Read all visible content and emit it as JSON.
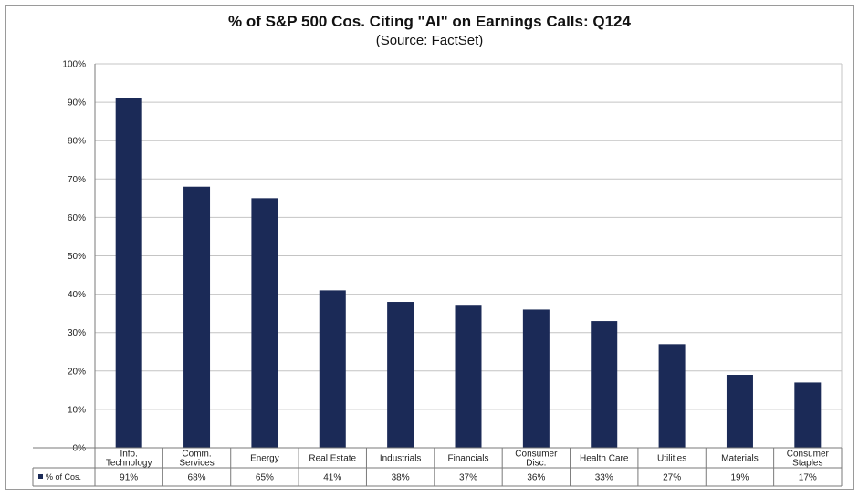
{
  "chart_data": {
    "type": "bar",
    "title": "% of S&P 500 Cos. Citing \"AI\" on Earnings Calls: Q124",
    "subtitle": "(Source: FactSet)",
    "categories": [
      [
        "Info.",
        "Technology"
      ],
      [
        "Comm.",
        "Services"
      ],
      [
        "Energy"
      ],
      [
        "Real Estate"
      ],
      [
        "Industrials"
      ],
      [
        "Financials"
      ],
      [
        "Consumer",
        "Disc."
      ],
      [
        "Health Care"
      ],
      [
        "Utilities"
      ],
      [
        "Materials"
      ],
      [
        "Consumer",
        "Staples"
      ]
    ],
    "series": [
      {
        "name": "% of Cos.",
        "values": [
          91,
          68,
          65,
          41,
          38,
          37,
          36,
          33,
          27,
          19,
          17
        ],
        "labels": [
          "91%",
          "68%",
          "65%",
          "41%",
          "38%",
          "37%",
          "36%",
          "33%",
          "27%",
          "19%",
          "17%"
        ],
        "color": "#1b2a57"
      }
    ],
    "yticks": [
      "0%",
      "10%",
      "20%",
      "30%",
      "40%",
      "50%",
      "60%",
      "70%",
      "80%",
      "90%",
      "100%"
    ],
    "ylim": [
      0,
      100
    ],
    "grid": true,
    "data_table": true
  }
}
